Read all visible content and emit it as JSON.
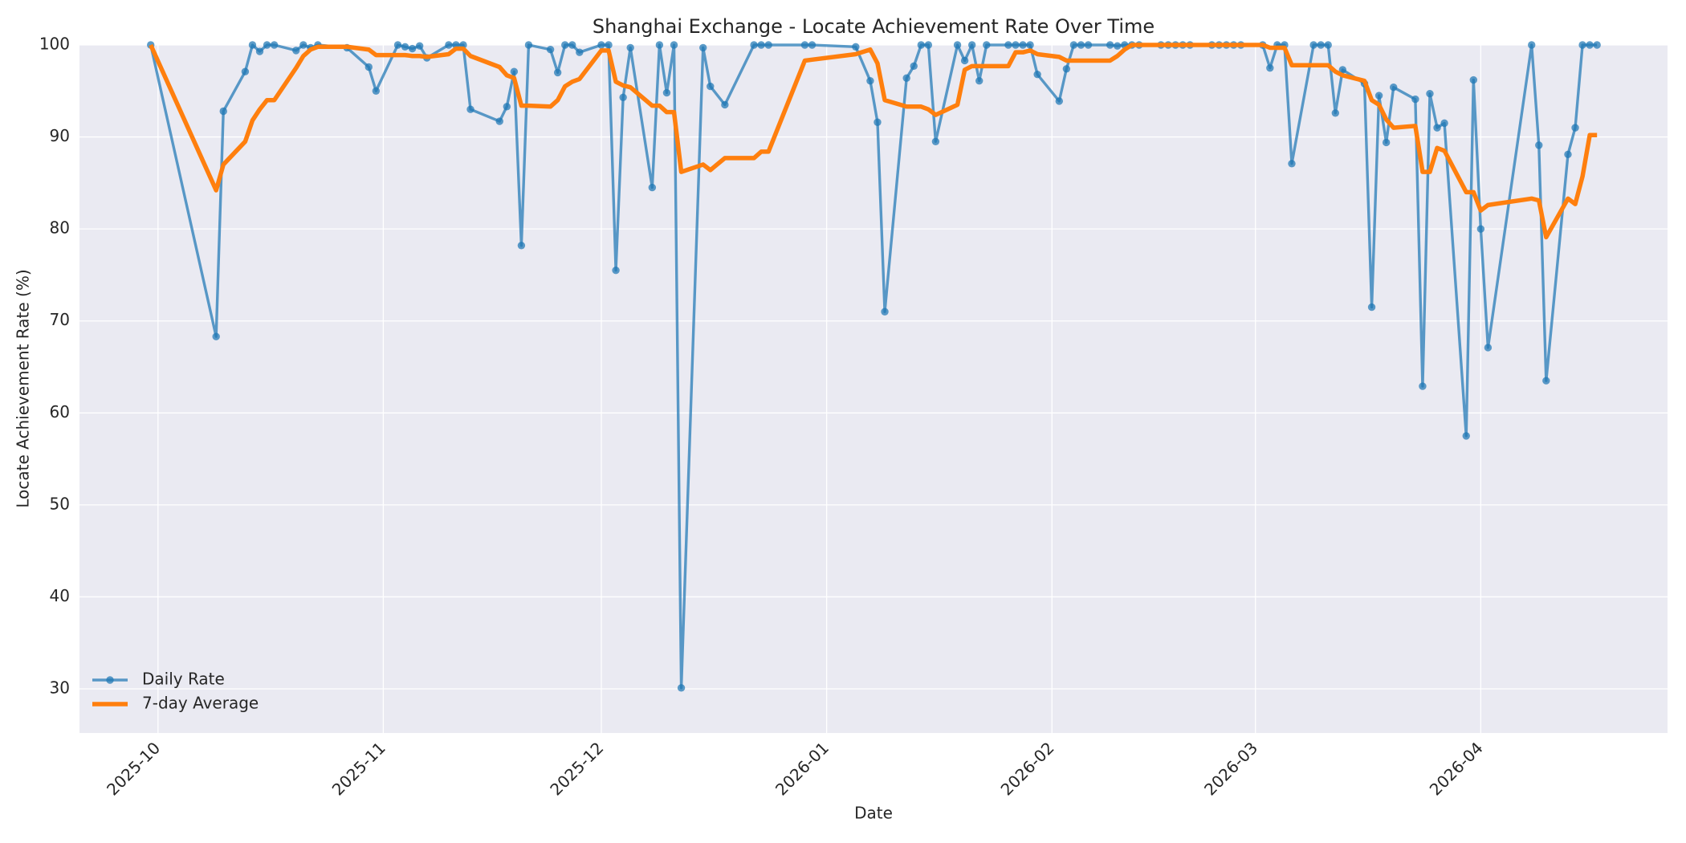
{
  "chart_data": {
    "type": "line",
    "title": "Shanghai Exchange - Locate Achievement Rate Over Time",
    "x_label": "Date",
    "y_label": "Locate Achievement Rate (%)",
    "x": [
      -1,
      8,
      9,
      12,
      13,
      14,
      15,
      16,
      19,
      20,
      21,
      22,
      26,
      29,
      30,
      33,
      34,
      35,
      36,
      37,
      40,
      41,
      42,
      43,
      47,
      48,
      49,
      50,
      51,
      54,
      55,
      56,
      57,
      58,
      61,
      62,
      63,
      64,
      65,
      68,
      69,
      70,
      71,
      72,
      75,
      76,
      78,
      82,
      83,
      84,
      89,
      90,
      96,
      98,
      99,
      100,
      103,
      104,
      105,
      106,
      107,
      110,
      111,
      112,
      113,
      114,
      117,
      118,
      119,
      120,
      121,
      124,
      125,
      126,
      127,
      128,
      131,
      132,
      133,
      134,
      135,
      138,
      139,
      140,
      141,
      142,
      145,
      146,
      147,
      148,
      149,
      152,
      153,
      154,
      155,
      156,
      159,
      160,
      161,
      162,
      163,
      166,
      167,
      168,
      169,
      170,
      173,
      174,
      175,
      176,
      177,
      180,
      181,
      182,
      183,
      189,
      190,
      191,
      194,
      195,
      196,
      197,
      198
    ],
    "series": [
      {
        "name": "Daily Rate",
        "color": "#1f77b4",
        "markers": true,
        "values": [
          100,
          68.3,
          92.8,
          97.1,
          100,
          99.3,
          100,
          100,
          99.4,
          100,
          99.7,
          100,
          99.7,
          97.6,
          95.0,
          100,
          99.8,
          99.6,
          99.9,
          98.6,
          100,
          100,
          100,
          93.0,
          91.7,
          93.3,
          97.1,
          78.2,
          100,
          99.5,
          97.0,
          100,
          100,
          99.2,
          100,
          100,
          75.5,
          94.3,
          99.7,
          84.5,
          100,
          94.8,
          100,
          30.1,
          99.7,
          95.5,
          93.5,
          100,
          100,
          100,
          100,
          100,
          99.8,
          96.1,
          91.6,
          71.0,
          96.4,
          97.7,
          100,
          100,
          89.5,
          100,
          98.3,
          100,
          96.1,
          100,
          100,
          100,
          100,
          100,
          96.8,
          93.9,
          97.4,
          100,
          100,
          100,
          100,
          99.9,
          100,
          100,
          100,
          100,
          100,
          100,
          100,
          100,
          100,
          100,
          100,
          100,
          100,
          100,
          97.5,
          100,
          100,
          87.1,
          100,
          100,
          100,
          92.6,
          97.3,
          95.8,
          71.5,
          94.5,
          89.4,
          95.4,
          94.1,
          62.9,
          94.7,
          91.0,
          91.5,
          57.5,
          96.2,
          80.0,
          67.1,
          100,
          89.1,
          63.5,
          88.1,
          91.0,
          100,
          100,
          100
        ]
      },
      {
        "name": "7-day Average",
        "color": "#ff7f0e",
        "markers": false,
        "values": [
          100,
          84.2,
          87.0,
          89.5,
          91.8,
          93.0,
          94.0,
          94.0,
          97.5,
          98.8,
          99.5,
          99.8,
          99.8,
          99.5,
          98.9,
          98.9,
          98.9,
          98.8,
          98.8,
          98.7,
          99.0,
          99.6,
          99.6,
          98.8,
          97.6,
          96.7,
          96.4,
          93.4,
          93.4,
          93.3,
          94.0,
          95.5,
          96.0,
          96.3,
          99.4,
          99.4,
          96.0,
          95.6,
          95.4,
          93.4,
          93.4,
          92.7,
          92.7,
          86.2,
          87.0,
          86.4,
          87.7,
          87.7,
          88.4,
          88.4,
          98.3,
          98.4,
          99.0,
          99.5,
          98.0,
          94.0,
          93.3,
          93.3,
          93.3,
          93.0,
          92.4,
          93.5,
          97.3,
          97.7,
          97.7,
          97.7,
          97.7,
          99.2,
          99.2,
          99.4,
          99.0,
          98.7,
          98.3,
          98.3,
          98.3,
          98.3,
          98.3,
          98.8,
          99.5,
          100,
          100,
          100,
          100,
          100,
          100,
          100,
          100,
          100,
          100,
          100,
          100,
          100,
          99.7,
          99.7,
          99.7,
          97.8,
          97.8,
          97.8,
          97.8,
          97.1,
          96.7,
          96.1,
          94.0,
          93.5,
          91.9,
          91.0,
          91.2,
          86.2,
          86.2,
          88.8,
          88.5,
          84.0,
          84.0,
          82.0,
          82.6,
          83.3,
          83.1,
          79.1,
          83.3,
          82.7,
          85.7,
          90.2,
          90.2
        ]
      }
    ],
    "xlim": [
      -10.8,
      207.7
    ],
    "xticks": [
      {
        "value": 0,
        "label": "2025-10"
      },
      {
        "value": 31,
        "label": "2025-11"
      },
      {
        "value": 61,
        "label": "2025-12"
      },
      {
        "value": 92,
        "label": "2026-01"
      },
      {
        "value": 123,
        "label": "2026-02"
      },
      {
        "value": 151,
        "label": "2026-03"
      },
      {
        "value": 182,
        "label": "2026-04"
      }
    ],
    "ylim": [
      25.2,
      100
    ],
    "yticks": [
      30,
      40,
      50,
      60,
      70,
      80,
      90,
      100
    ],
    "grid": true,
    "legend": "lower left"
  }
}
